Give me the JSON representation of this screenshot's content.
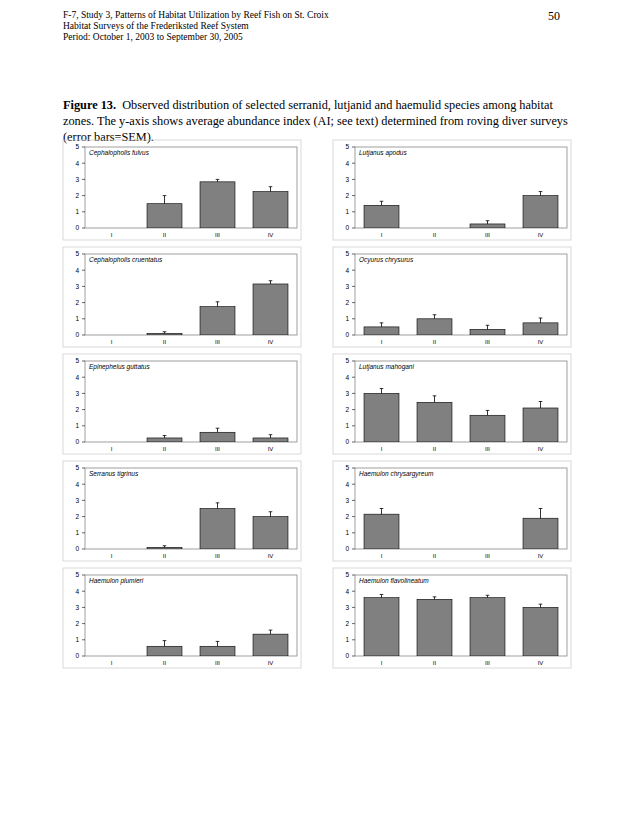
{
  "header": [
    "F-7, Study 3, Patterns of Habitat Utilization by Reef Fish on St. Croix",
    "Habitat Surveys of the Frederiksted Reef System",
    "Period: October 1, 2003 to September 30, 2005"
  ],
  "page_number": "50",
  "caption": {
    "label": "Figure 13.",
    "text": "Observed distribution of selected serranid, lutjanid and haemulid species among habitat zones.  The y-axis shows average abundance index (AI; see text) determined from roving diver surveys (error bars=SEM)."
  },
  "chart_data": [
    {
      "type": "bar",
      "title": "Cephalopholis fulvus",
      "categories": [
        "I",
        "II",
        "III",
        "IV"
      ],
      "values": [
        0,
        1.5,
        2.85,
        2.25
      ],
      "error": [
        0,
        0.5,
        0.15,
        0.3
      ],
      "color": "#808080",
      "ylim": [
        0,
        5
      ],
      "yticks": [
        0,
        1,
        2,
        3,
        4,
        5
      ],
      "grid": false
    },
    {
      "type": "bar",
      "title": "Lutjanus apodus",
      "categories": [
        "I",
        "II",
        "III",
        "IV"
      ],
      "values": [
        1.4,
        0,
        0.25,
        2.0
      ],
      "error": [
        0.25,
        0,
        0.2,
        0.25
      ],
      "color": "#808080",
      "ylim": [
        0,
        5
      ],
      "yticks": [
        0,
        1,
        2,
        3,
        4,
        5
      ],
      "grid": false
    },
    {
      "type": "bar",
      "title": "Cephalopholis cruentatus",
      "categories": [
        "I",
        "II",
        "III",
        "IV"
      ],
      "values": [
        0,
        0.1,
        1.75,
        3.15
      ],
      "error": [
        0,
        0.1,
        0.3,
        0.2
      ],
      "color": "#808080",
      "ylim": [
        0,
        5
      ],
      "yticks": [
        0,
        1,
        2,
        3,
        4,
        5
      ],
      "grid": false
    },
    {
      "type": "bar",
      "title": "Ocyurus chrysurus",
      "categories": [
        "I",
        "II",
        "III",
        "IV"
      ],
      "values": [
        0.5,
        1.0,
        0.35,
        0.75
      ],
      "error": [
        0.25,
        0.25,
        0.25,
        0.3
      ],
      "color": "#808080",
      "ylim": [
        0,
        5
      ],
      "yticks": [
        0,
        1,
        2,
        3,
        4,
        5
      ],
      "grid": false
    },
    {
      "type": "bar",
      "title": "Epinephelus guttatus",
      "categories": [
        "I",
        "II",
        "III",
        "IV"
      ],
      "values": [
        0,
        0.25,
        0.6,
        0.25
      ],
      "error": [
        0,
        0.15,
        0.25,
        0.2
      ],
      "color": "#808080",
      "ylim": [
        0,
        5
      ],
      "yticks": [
        0,
        1,
        2,
        3,
        4,
        5
      ],
      "grid": false
    },
    {
      "type": "bar",
      "title": "Lutjanus mahogani",
      "categories": [
        "I",
        "II",
        "III",
        "IV"
      ],
      "values": [
        3.0,
        2.45,
        1.65,
        2.1
      ],
      "error": [
        0.3,
        0.4,
        0.3,
        0.4
      ],
      "color": "#808080",
      "ylim": [
        0,
        5
      ],
      "yticks": [
        0,
        1,
        2,
        3,
        4,
        5
      ],
      "grid": false
    },
    {
      "type": "bar",
      "title": "Serranus tigrinus",
      "categories": [
        "I",
        "II",
        "III",
        "IV"
      ],
      "values": [
        0,
        0.1,
        2.5,
        2.0
      ],
      "error": [
        0,
        0.1,
        0.35,
        0.3
      ],
      "color": "#808080",
      "ylim": [
        0,
        5
      ],
      "yticks": [
        0,
        1,
        2,
        3,
        4,
        5
      ],
      "grid": false
    },
    {
      "type": "bar",
      "title": "Haemulon chrysargyreum",
      "categories": [
        "I",
        "II",
        "III",
        "IV"
      ],
      "values": [
        2.15,
        0,
        0,
        1.9
      ],
      "error": [
        0.35,
        0,
        0,
        0.6
      ],
      "color": "#808080",
      "ylim": [
        0,
        5
      ],
      "yticks": [
        0,
        1,
        2,
        3,
        4,
        5
      ],
      "grid": false
    },
    {
      "type": "bar",
      "title": "Haemulon plumieri",
      "categories": [
        "I",
        "II",
        "III",
        "IV"
      ],
      "values": [
        0,
        0.6,
        0.6,
        1.35
      ],
      "error": [
        0,
        0.35,
        0.3,
        0.25
      ],
      "color": "#808080",
      "ylim": [
        0,
        5
      ],
      "yticks": [
        0,
        1,
        2,
        3,
        4,
        5
      ],
      "grid": false
    },
    {
      "type": "bar",
      "title": "Haemulon flavolineatum",
      "categories": [
        "I",
        "II",
        "III",
        "IV"
      ],
      "values": [
        3.6,
        3.5,
        3.6,
        3.0
      ],
      "error": [
        0.2,
        0.15,
        0.15,
        0.2
      ],
      "color": "#808080",
      "ylim": [
        0,
        5
      ],
      "yticks": [
        0,
        1,
        2,
        3,
        4,
        5
      ],
      "grid": false
    }
  ]
}
